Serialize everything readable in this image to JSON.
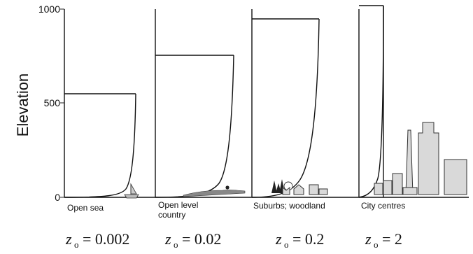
{
  "axis": {
    "ylabel": "Elevation",
    "ticks": [
      "1000",
      "500",
      "0"
    ]
  },
  "panels": [
    {
      "caption_lines": [
        "Open sea"
      ],
      "z0_label": "z",
      "z0_sub": "o",
      "z0_value": "= 0.002"
    },
    {
      "caption_lines": [
        "Open level",
        "country"
      ],
      "z0_label": "z",
      "z0_sub": "o",
      "z0_value": "= 0.02"
    },
    {
      "caption_lines": [
        "Suburbs; woodland"
      ],
      "z0_label": "z",
      "z0_sub": "o",
      "z0_value": "= 0.2"
    },
    {
      "caption_lines": [
        "City centres"
      ],
      "z0_label": "z",
      "z0_sub": "o",
      "z0_value": "= 2"
    }
  ],
  "profile_heights": [
    550,
    755,
    950,
    1020
  ]
}
